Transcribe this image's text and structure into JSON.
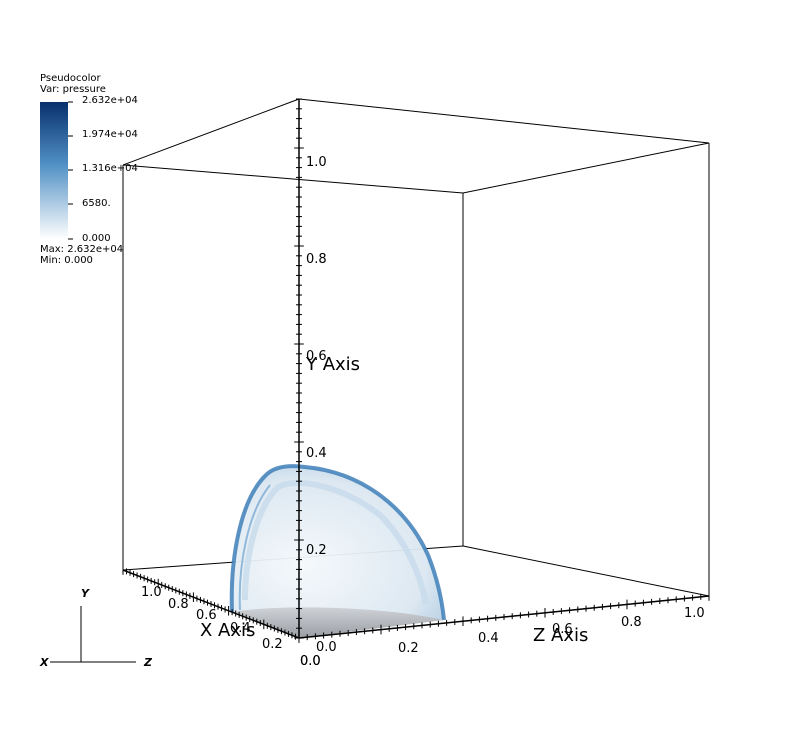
{
  "legend": {
    "plot_type": "Pseudocolor",
    "variable": "Var: pressure",
    "tick_labels": [
      "2.632e+04",
      "1.974e+04",
      "1.316e+04",
      "6580.",
      "0.000"
    ],
    "max_label": "Max:  2.632e+04",
    "min_label": "Min:  0.000",
    "color_high": "#08306b",
    "color_mid": "#4f8fc4",
    "color_low": "#ffffff"
  },
  "axes": {
    "x_title": "X Axis",
    "y_title": "Y Axis",
    "z_title": "Z Axis",
    "y_ticks": [
      "1.0",
      "0.8",
      "0.6",
      "0.4",
      "0.2"
    ],
    "x_ticks": [
      "1.0",
      "0.8",
      "0.6",
      "0.4",
      "0.2",
      "0.0"
    ],
    "z_ticks": [
      "0.0",
      "0.2",
      "0.4",
      "0.6",
      "0.8",
      "1.0"
    ],
    "origin_y_label": "0.0"
  },
  "triad": {
    "x": "X",
    "y": "Y",
    "z": "Z"
  },
  "surface": {
    "edge_color": "#3e7fb8",
    "fill_color": "#dce9f4",
    "base_color": "#b8bcc2"
  }
}
